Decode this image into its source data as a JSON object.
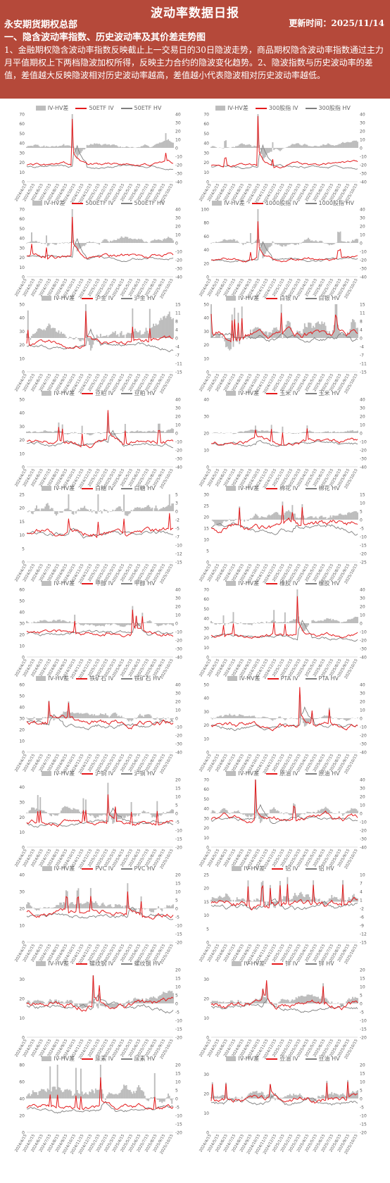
{
  "header": {
    "title": "波动率数据日报",
    "org": "永安期货期权总部",
    "update": "更新时间：2025/11/14",
    "section": "一、隐含波动率指数、历史波动率及其价差走势图",
    "paragraph": "1、金融期权隐含波动率指数反映截止上一交易日的30日隐波走势，商品期权隐含波动率指数通过主力月平值期权上下两档隐波加权所得，反映主力合约的隐波变化趋势。2、隐波指数与历史波动率的差值，差值越大反映隐波相对历史波动率越高，差值越小代表隐波相对历史波动率越低。"
  },
  "colors": {
    "diff": "#bdbdbd",
    "iv": "#e41a1c",
    "hv": "#7f7f7f"
  },
  "x_ticks": [
    "2024/4/15",
    "2024/5/15",
    "2024/6/15",
    "2024/7/15",
    "2024/8/15",
    "2024/9/15",
    "2024/10/15",
    "2024/11/15",
    "2024/12/15",
    "2025/1/15",
    "2025/2/15",
    "2025/3/15",
    "2025/4/15",
    "2025/5/15",
    "2025/6/15",
    "2025/7/15",
    "2025/8/15",
    "2025/9/15",
    "2025/10/15"
  ],
  "chart_data": [
    {
      "type": "bar+line",
      "legend": [
        "IV-HV差",
        "50ETF IV",
        "50ETF HV"
      ],
      "ylim": [
        0,
        70
      ],
      "y2lim": [
        -40,
        40
      ],
      "seed": 1,
      "base": 17,
      "spike": [
        0.31,
        65
      ]
    },
    {
      "type": "bar+line",
      "legend": [
        "IV-HV差",
        "300股指 IV",
        "300股指 HV"
      ],
      "ylim": [
        0,
        70
      ],
      "y2lim": [
        -40,
        40
      ],
      "seed": 2,
      "base": 17,
      "spike": [
        0.32,
        68
      ]
    },
    {
      "type": "bar+line",
      "legend": [
        "IV-HV差",
        "500ETF IV",
        "500ETF HV"
      ],
      "ylim": [
        0,
        70
      ],
      "y2lim": [
        -40,
        40
      ],
      "seed": 3,
      "base": 22,
      "spike": [
        0.31,
        62
      ]
    },
    {
      "type": "bar+line",
      "legend": [
        "IV-HV差",
        "1000股指 IV",
        "1000股指 HV"
      ],
      "ylim": [
        0,
        100
      ],
      "y2lim": [
        -40,
        40
      ],
      "seed": 4,
      "base": 26,
      "spike": [
        0.32,
        82
      ]
    },
    {
      "type": "bar+line",
      "legend": [
        "IV-HV差",
        "沪金 IV",
        "沪金 HV"
      ],
      "ylim": [
        0,
        50
      ],
      "y2lim": [
        -15,
        15
      ],
      "seed": 5,
      "base": 20,
      "spike": [
        0.4,
        45
      ]
    },
    {
      "type": "bar+line",
      "legend": [
        "IV-HV差",
        "白银 IV",
        "白银 HV"
      ],
      "ylim": [
        0,
        50
      ],
      "y2lim": [
        -15,
        15
      ],
      "seed": 6,
      "base": 28,
      "spike": [
        0.85,
        40
      ]
    },
    {
      "type": "bar+line",
      "legend": [
        "IV-HV差",
        "豆粕 IV",
        "豆粕 HV"
      ],
      "ylim": [
        0,
        50
      ],
      "y2lim": [
        -40,
        40
      ],
      "seed": 7,
      "base": 19,
      "spike": [
        0.55,
        42
      ]
    },
    {
      "type": "bar+line",
      "legend": [
        "IV-HV差",
        "玉米 IV",
        "玉米 HV"
      ],
      "ylim": [
        0,
        40
      ],
      "y2lim": [
        -40,
        40
      ],
      "seed": 8,
      "base": 14,
      "spike": [
        0.3,
        22
      ]
    },
    {
      "type": "bar+line",
      "legend": [
        "IV-HV差",
        "白糖 IV",
        "白糖 HV"
      ],
      "ylim": [
        0,
        25
      ],
      "y2lim": [
        -15,
        5
      ],
      "seed": 9,
      "base": 11,
      "spike": [
        0.28,
        16
      ]
    },
    {
      "type": "bar+line",
      "legend": [
        "IV-HV差",
        "棉花 IV",
        "棉花 HV"
      ],
      "ylim": [
        0,
        30
      ],
      "y2lim": [
        -25,
        15
      ],
      "seed": 10,
      "base": 16,
      "spike": [
        0.55,
        22
      ]
    },
    {
      "type": "bar+line",
      "legend": [
        "IV-HV差",
        "甲醇 IV",
        "甲醇 HV"
      ],
      "ylim": [
        0,
        60
      ],
      "y2lim": [
        -40,
        40
      ],
      "seed": 11,
      "base": 22,
      "spike": [
        0.72,
        42
      ]
    },
    {
      "type": "bar+line",
      "legend": [
        "IV-HV差",
        "橡胶 IV",
        "橡胶 HV"
      ],
      "ylim": [
        0,
        70
      ],
      "y2lim": [
        -40,
        40
      ],
      "seed": 12,
      "base": 22,
      "spike": [
        0.58,
        63
      ]
    },
    {
      "type": "bar+line",
      "legend": [
        "IV-HV差",
        "铁矿石 IV",
        "铁矿石 HV"
      ],
      "ylim": [
        0,
        60
      ],
      "y2lim": [
        -40,
        40
      ],
      "seed": 13,
      "base": 27,
      "spike": [
        0.15,
        45
      ]
    },
    {
      "type": "bar+line",
      "legend": [
        "IV-HV差",
        "PTA IV",
        "PTA HV"
      ],
      "ylim": [
        0,
        50
      ],
      "y2lim": [
        -40,
        40
      ],
      "seed": 14,
      "base": 20,
      "spike": [
        0.6,
        48
      ]
    },
    {
      "type": "bar+line",
      "legend": [
        "IV-HV差",
        "沪铜 IV",
        "沪铜 HV"
      ],
      "ylim": [
        0,
        45
      ],
      "y2lim": [
        -20,
        20
      ],
      "seed": 15,
      "base": 17,
      "spike": [
        0.55,
        35
      ]
    },
    {
      "type": "bar+line",
      "legend": [
        "IV-HV差",
        "原油 IV",
        "原油 HV"
      ],
      "ylim": [
        0,
        70
      ],
      "y2lim": [
        -40,
        40
      ],
      "seed": 16,
      "base": 30,
      "spike": [
        0.3,
        60
      ]
    },
    {
      "type": "bar+line",
      "legend": [
        "IV-HV差",
        "PVC IV",
        "PVC HV"
      ],
      "ylim": [
        0,
        40
      ],
      "y2lim": [
        -20,
        20
      ],
      "seed": 17,
      "base": 17,
      "spike": [
        0.68,
        30
      ]
    },
    {
      "type": "bar+line",
      "legend": [
        "IV-HV差",
        "铝 IV",
        "铝 HV"
      ],
      "ylim": [
        0,
        25
      ],
      "y2lim": [
        -15,
        10
      ],
      "seed": 18,
      "base": 14,
      "spike": [
        0.4,
        20
      ]
    },
    {
      "type": "bar+line",
      "legend": [
        "IV-HV差",
        "螺纹钢 IV",
        "螺纹钢 HV"
      ],
      "ylim": [
        0,
        35
      ],
      "y2lim": [
        -20,
        20
      ],
      "seed": 19,
      "base": 17,
      "spike": [
        0.45,
        32
      ]
    },
    {
      "type": "bar+line",
      "legend": [
        "IV-HV差",
        "锌 IV",
        "锌 HV"
      ],
      "ylim": [
        0,
        35
      ],
      "y2lim": [
        -20,
        20
      ],
      "seed": 20,
      "base": 17,
      "spike": [
        0.35,
        25
      ]
    },
    {
      "type": "bar+line",
      "legend": [
        "IV-HV差",
        "尿素 IV",
        "尿素 HV"
      ],
      "ylim": [
        0,
        80
      ],
      "y2lim": [
        -20,
        20
      ],
      "seed": 21,
      "base": 30,
      "spike": [
        0.5,
        50
      ]
    },
    {
      "type": "bar+line",
      "legend": [
        "IV-HV差",
        "豆油 IV",
        "豆油 HV"
      ],
      "ylim": [
        0,
        35
      ],
      "y2lim": [
        -20,
        20
      ],
      "seed": 22,
      "base": 17,
      "spike": [
        0.4,
        25
      ]
    }
  ]
}
